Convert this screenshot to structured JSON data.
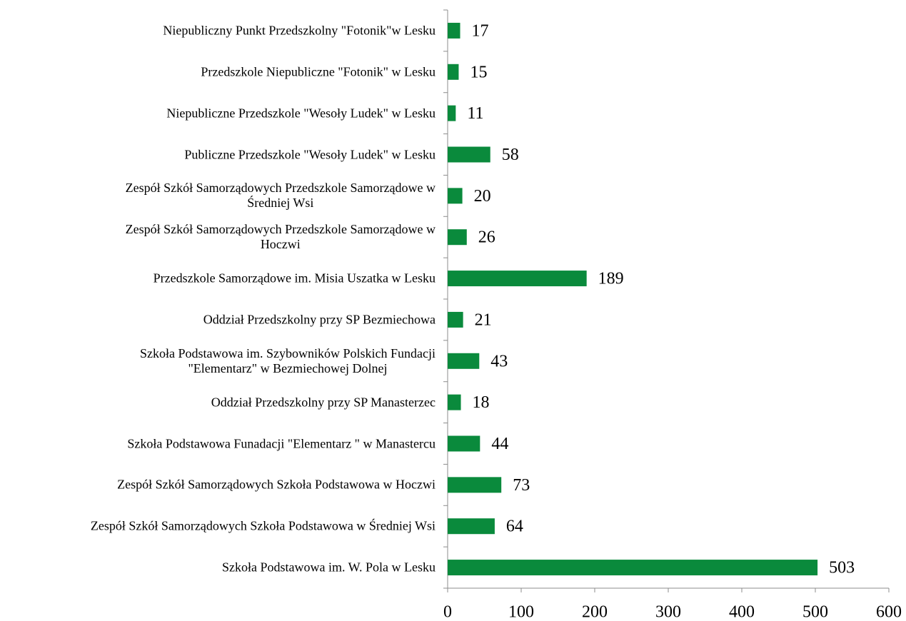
{
  "chart_data": {
    "type": "hbar",
    "categories": [
      "Niepubliczny Punkt Przedszkolny \"Fotonik\"w Lesku",
      "Przedszkole Niepubliczne \"Fotonik\" w Lesku",
      "Niepubliczne Przedszkole \"Wesoły Ludek\" w Lesku",
      "Publiczne Przedszkole \"Wesoły Ludek\" w Lesku",
      "Zespół Szkół Samorządowych Przedszkole Samorządowe  w\nŚredniej Wsi",
      "Zespół Szkół Samorządowych Przedszkole Samorządowe w\nHoczwi",
      "Przedszkole Samorządowe im. Misia Uszatka w Lesku",
      "Oddział Przedszkolny przy SP Bezmiechowa",
      "Szkoła Podstawowa im. Szybowników Polskich Fundacji\n\"Elementarz\" w Bezmiechowej Dolnej",
      "Oddział Przedszkolny przy SP Manasterzec",
      "Szkoła Podstawowa Funadacji \"Elementarz \" w Manastercu",
      "Zespół Szkół Samorządowych Szkoła Podstawowa w Hoczwi",
      "Zespół Szkół Samorządowych Szkoła Podstawowa w Średniej Wsi",
      "Szkoła Podstawowa im. W. Pola w Lesku"
    ],
    "values": [
      17,
      15,
      11,
      58,
      20,
      26,
      189,
      21,
      43,
      18,
      44,
      73,
      64,
      503
    ],
    "color": "#0a8a3c",
    "xlim": [
      0,
      600
    ],
    "xticks": [
      0,
      100,
      200,
      300,
      400,
      500,
      600
    ]
  }
}
